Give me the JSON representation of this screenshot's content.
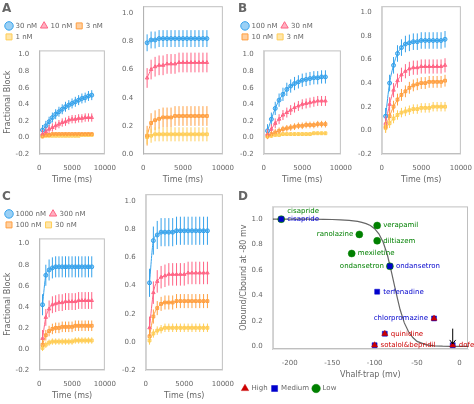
{
  "chart_data": [
    {
      "type": "line",
      "title": "A",
      "xlabel": "Time (ms)",
      "ylabel": "Fractional Block",
      "x": [
        500,
        1000,
        1500,
        2000,
        2500,
        3000,
        3500,
        4000,
        4500,
        5000,
        5500,
        6000,
        6500,
        7000,
        7500,
        8000
      ],
      "series": [
        {
          "name": "30 nM",
          "marker": "circle",
          "error": 0.06,
          "values": [
            0.09,
            0.14,
            0.19,
            0.24,
            0.28,
            0.31,
            0.34,
            0.37,
            0.39,
            0.41,
            0.43,
            0.45,
            0.47,
            0.48,
            0.5,
            0.51
          ]
        },
        {
          "name": "10 nM",
          "marker": "triangle",
          "error": 0.05,
          "values": [
            0.04,
            0.07,
            0.1,
            0.12,
            0.14,
            0.16,
            0.18,
            0.19,
            0.21,
            0.22,
            0.22,
            0.23,
            0.23,
            0.24,
            0.24,
            0.24
          ]
        },
        {
          "name": "3 nM",
          "marker": "square",
          "error": 0.02,
          "values": [
            0.02,
            0.03,
            0.03,
            0.04,
            0.04,
            0.04,
            0.04,
            0.04,
            0.04,
            0.04,
            0.04,
            0.04,
            0.04,
            0.04,
            0.04,
            0.04
          ]
        },
        {
          "name": "1 nM",
          "marker": "square",
          "error": 0.01,
          "values": [
            0.01,
            0.02,
            0.02,
            0.02,
            0.02,
            0.02,
            0.02,
            0.02,
            0.02,
            0.02,
            0.02,
            0.02,
            0.03,
            0.03,
            0.03,
            0.03
          ]
        }
      ],
      "xlim": [
        0,
        10000
      ],
      "xticks": [
        0,
        5000,
        10000
      ],
      "ylim": [
        -0.2,
        1.05
      ],
      "yticks": [
        -0.2,
        {
          "value": 0,
          "label": "0.0"
        },
        0.2,
        0.4,
        0.6,
        0.8,
        {
          "value": 1,
          "label": "1.0"
        }
      ],
      "grid": false,
      "legend": "upper left"
    },
    {
      "type": "line",
      "xlabel": "Time (ms)",
      "x": [
        500,
        1000,
        1500,
        2000,
        2500,
        3000,
        3500,
        4000,
        4500,
        5000,
        5500,
        6000,
        6500,
        7000,
        7500,
        8000
      ],
      "series": [
        {
          "marker": "circle",
          "error": 0.06,
          "values": [
            0.79,
            0.81,
            0.81,
            0.82,
            0.82,
            0.82,
            0.82,
            0.82,
            0.82,
            0.82,
            0.82,
            0.82,
            0.82,
            0.82,
            0.82,
            0.82
          ]
        },
        {
          "marker": "triangle",
          "error": 0.07,
          "values": [
            0.54,
            0.6,
            0.62,
            0.63,
            0.63,
            0.64,
            0.64,
            0.64,
            0.65,
            0.65,
            0.65,
            0.65,
            0.65,
            0.65,
            0.65,
            0.65
          ]
        },
        {
          "marker": "square",
          "error": 0.07,
          "values": [
            0.13,
            0.22,
            0.24,
            0.25,
            0.26,
            0.26,
            0.26,
            0.27,
            0.27,
            0.27,
            0.27,
            0.27,
            0.27,
            0.27,
            0.27,
            0.27
          ]
        },
        {
          "marker": "square",
          "error": 0.05,
          "values": [
            0.12,
            0.13,
            0.14,
            0.14,
            0.14,
            0.14,
            0.14,
            0.14,
            0.14,
            0.14,
            0.14,
            0.14,
            0.14,
            0.14,
            0.14,
            0.14
          ]
        }
      ],
      "xlim": [
        0,
        10000
      ],
      "xticks": [
        0,
        5000,
        10000
      ],
      "ylim": [
        0,
        1.05
      ],
      "yticks": [
        {
          "value": 0,
          "label": "0.0"
        },
        0.2,
        0.4,
        0.6,
        0.8,
        {
          "value": 1,
          "label": "1.0"
        }
      ],
      "grid": false
    },
    {
      "type": "line",
      "title": "B",
      "xlabel": "Time (ms)",
      "x": [
        500,
        1000,
        1500,
        2000,
        2500,
        3000,
        3500,
        4000,
        4500,
        5000,
        5500,
        6000,
        6500,
        7000,
        7500,
        8000
      ],
      "series": [
        {
          "name": "100 nM",
          "marker": "circle",
          "error": 0.08,
          "values": [
            0.08,
            0.22,
            0.35,
            0.45,
            0.52,
            0.58,
            0.62,
            0.65,
            0.67,
            0.69,
            0.7,
            0.71,
            0.72,
            0.72,
            0.73,
            0.73
          ]
        },
        {
          "name": "30 nM",
          "marker": "triangle",
          "error": 0.06,
          "values": [
            0.04,
            0.1,
            0.17,
            0.22,
            0.27,
            0.3,
            0.33,
            0.36,
            0.38,
            0.4,
            0.41,
            0.42,
            0.43,
            0.44,
            0.44,
            0.44
          ]
        },
        {
          "name": "10 nM",
          "marker": "square",
          "error": 0.04,
          "values": [
            0.02,
            0.04,
            0.06,
            0.08,
            0.1,
            0.11,
            0.12,
            0.13,
            0.14,
            0.14,
            0.15,
            0.15,
            0.15,
            0.16,
            0.16,
            0.16
          ]
        },
        {
          "name": "3 nM",
          "marker": "square",
          "error": 0.02,
          "values": [
            0.01,
            0.02,
            0.03,
            0.03,
            0.04,
            0.04,
            0.04,
            0.04,
            0.04,
            0.04,
            0.04,
            0.04,
            0.05,
            0.05,
            0.05,
            0.05
          ]
        }
      ],
      "xlim": [
        0,
        10000
      ],
      "xticks": [
        0,
        5000,
        10000
      ],
      "ylim": [
        -0.2,
        1.05
      ],
      "yticks": [
        -0.2,
        {
          "value": 0,
          "label": "0.0"
        },
        0.2,
        0.4,
        0.6,
        0.8,
        {
          "value": 1,
          "label": "1.0"
        }
      ],
      "grid": false,
      "legend": "upper left"
    },
    {
      "type": "line",
      "xlabel": "Time (ms)",
      "x": [
        500,
        1000,
        1500,
        2000,
        2500,
        3000,
        3500,
        4000,
        4500,
        5000,
        5500,
        6000,
        6500,
        7000,
        7500,
        8000
      ],
      "series": [
        {
          "marker": "circle",
          "error": 0.07,
          "values": [
            0.12,
            0.4,
            0.55,
            0.65,
            0.7,
            0.73,
            0.74,
            0.75,
            0.75,
            0.76,
            0.76,
            0.76,
            0.76,
            0.76,
            0.76,
            0.77
          ]
        },
        {
          "marker": "triangle",
          "error": 0.06,
          "values": [
            0.06,
            0.22,
            0.34,
            0.42,
            0.47,
            0.5,
            0.52,
            0.53,
            0.53,
            0.54,
            0.54,
            0.54,
            0.54,
            0.54,
            0.54,
            0.55
          ]
        },
        {
          "marker": "square",
          "error": 0.05,
          "values": [
            0.03,
            0.12,
            0.2,
            0.26,
            0.3,
            0.33,
            0.36,
            0.38,
            0.39,
            0.4,
            0.4,
            0.41,
            0.41,
            0.41,
            0.41,
            0.42
          ]
        },
        {
          "marker": "square",
          "error": 0.04,
          "values": [
            0.02,
            0.06,
            0.1,
            0.13,
            0.15,
            0.16,
            0.17,
            0.18,
            0.18,
            0.19,
            0.19,
            0.19,
            0.2,
            0.2,
            0.2,
            0.2
          ]
        }
      ],
      "xlim": [
        0,
        10000
      ],
      "xticks": [
        0,
        5000,
        10000
      ],
      "ylim": [
        -0.2,
        1.05
      ],
      "yticks": [
        -0.2,
        {
          "value": 0,
          "label": "0.0"
        },
        0.2,
        0.4,
        0.6,
        0.8,
        {
          "value": 1,
          "label": "1.0"
        }
      ],
      "grid": false
    },
    {
      "type": "line",
      "title": "C",
      "xlabel": "Time (ms)",
      "ylabel": "Fractional Block",
      "x": [
        500,
        1000,
        1500,
        2000,
        2500,
        3000,
        3500,
        4000,
        4500,
        5000,
        5500,
        6000,
        6500,
        7000,
        7500,
        8000
      ],
      "series": [
        {
          "name": "1000 nM",
          "marker": "circle",
          "error": 0.1,
          "values": [
            0.42,
            0.7,
            0.75,
            0.77,
            0.78,
            0.78,
            0.78,
            0.78,
            0.78,
            0.78,
            0.78,
            0.78,
            0.78,
            0.78,
            0.78,
            0.78
          ]
        },
        {
          "name": "300 nM",
          "marker": "triangle",
          "error": 0.08,
          "values": [
            0.1,
            0.3,
            0.38,
            0.42,
            0.43,
            0.44,
            0.44,
            0.45,
            0.45,
            0.45,
            0.45,
            0.46,
            0.46,
            0.46,
            0.46,
            0.46
          ]
        },
        {
          "name": "100 nM",
          "marker": "square",
          "error": 0.05,
          "values": [
            0.04,
            0.13,
            0.17,
            0.19,
            0.2,
            0.2,
            0.21,
            0.21,
            0.21,
            0.21,
            0.22,
            0.22,
            0.22,
            0.22,
            0.22,
            0.22
          ]
        },
        {
          "name": "30 nM",
          "marker": "square",
          "error": 0.03,
          "values": [
            0.01,
            0.04,
            0.06,
            0.07,
            0.07,
            0.07,
            0.07,
            0.07,
            0.07,
            0.07,
            0.08,
            0.08,
            0.08,
            0.08,
            0.08,
            0.08
          ]
        }
      ],
      "xlim": [
        0,
        10000
      ],
      "xticks": [
        0,
        5000,
        10000
      ],
      "ylim": [
        -0.2,
        1.05
      ],
      "yticks": [
        -0.2,
        {
          "value": 0,
          "label": "0.0"
        },
        0.2,
        0.4,
        0.6,
        0.8,
        {
          "value": 1,
          "label": "1.0"
        }
      ],
      "grid": false,
      "legend": "upper left"
    },
    {
      "type": "line",
      "xlabel": "Time (ms)",
      "x": [
        500,
        1000,
        1500,
        2000,
        2500,
        3000,
        3500,
        4000,
        4500,
        5000,
        5500,
        6000,
        6500,
        7000,
        7500,
        8000
      ],
      "series": [
        {
          "marker": "circle",
          "error": 0.1,
          "values": [
            0.42,
            0.72,
            0.76,
            0.78,
            0.78,
            0.78,
            0.78,
            0.79,
            0.79,
            0.79,
            0.79,
            0.79,
            0.79,
            0.79,
            0.79,
            0.79
          ]
        },
        {
          "marker": "triangle",
          "error": 0.08,
          "values": [
            0.1,
            0.35,
            0.43,
            0.46,
            0.47,
            0.48,
            0.48,
            0.48,
            0.48,
            0.48,
            0.49,
            0.49,
            0.49,
            0.49,
            0.49,
            0.49
          ]
        },
        {
          "marker": "square",
          "error": 0.05,
          "values": [
            0.04,
            0.18,
            0.24,
            0.27,
            0.28,
            0.28,
            0.28,
            0.29,
            0.29,
            0.29,
            0.29,
            0.29,
            0.29,
            0.29,
            0.29,
            0.29
          ]
        },
        {
          "marker": "square",
          "error": 0.03,
          "values": [
            0.01,
            0.06,
            0.08,
            0.09,
            0.1,
            0.1,
            0.1,
            0.1,
            0.1,
            0.1,
            0.1,
            0.1,
            0.1,
            0.1,
            0.1,
            0.1
          ]
        }
      ],
      "xlim": [
        0,
        10000
      ],
      "xticks": [
        0,
        5000,
        10000
      ],
      "ylim": [
        -0.2,
        1.05
      ],
      "yticks": [
        -0.2,
        {
          "value": 0,
          "label": "0.0"
        },
        0.2,
        0.4,
        0.6,
        0.8,
        {
          "value": 1,
          "label": "1.0"
        }
      ],
      "grid": false
    },
    {
      "type": "scatter",
      "title": "D",
      "xlabel": "Vhalf-trap (mv)",
      "ylabel": "Obound/Cbound at -80 mv",
      "series": [
        {
          "name": "High",
          "color": "#CC0000",
          "marker": "triangle",
          "x": [
            -88,
            -100,
            -8,
            -30
          ],
          "values": [
            0.1,
            0.01,
            0.01,
            0.22
          ],
          "point_labels": [
            "quinidine",
            "sotalol&bepridil",
            "dofetilide",
            null
          ]
        },
        {
          "name": "Medium",
          "color": "#0000CC",
          "marker": "square",
          "x": [
            -210,
            -82,
            -97,
            -30,
            -88,
            -100,
            -8
          ],
          "values": [
            1.0,
            0.63,
            0.43,
            0.22,
            0.1,
            0.01,
            0.01
          ],
          "point_labels": [
            "cisapride",
            "ondansetron",
            "terfenadine",
            "chlorpromazine",
            null,
            null,
            null
          ]
        },
        {
          "name": "Low",
          "color": "#008000",
          "marker": "circle",
          "x": [
            -210,
            -118,
            -97,
            -97,
            -127,
            -82
          ],
          "values": [
            1.0,
            0.88,
            0.95,
            0.83,
            0.73,
            0.63
          ],
          "point_labels": [
            "cisapride",
            "ranolazine",
            "verapamil",
            "diltiazem",
            "mexiletine",
            "ondansetron"
          ]
        },
        {
          "type": "line",
          "color": "#666666",
          "x": [
            -220,
            -215,
            -210,
            -200,
            -190,
            -180,
            -170,
            -160,
            -150,
            -140,
            -130,
            -120,
            -115,
            -110,
            -105,
            -100,
            -95,
            -90,
            -85,
            -80,
            -75,
            -70,
            -65,
            -60,
            -55,
            -50,
            -40,
            -30,
            -20,
            -10,
            0,
            10
          ],
          "values": [
            1.0,
            1.0,
            1.0,
            1.0,
            1.0,
            1.0,
            0.999,
            0.998,
            0.997,
            0.994,
            0.99,
            0.982,
            0.975,
            0.965,
            0.95,
            0.925,
            0.885,
            0.82,
            0.72,
            0.58,
            0.43,
            0.29,
            0.185,
            0.115,
            0.07,
            0.04,
            0.015,
            0.005,
            0.002,
            0.001,
            0.0,
            0.0
          ]
        }
      ],
      "arrows": [
        {
          "x": -8,
          "y_start": 0.14,
          "y_end": 0.02
        }
      ],
      "xlim": [
        -220,
        10
      ],
      "xticks": [
        -200,
        -150,
        -100,
        -50,
        0
      ],
      "ylim": [
        -0.02,
        1.1
      ],
      "yticks": [
        {
          "value": 0,
          "label": "0.0"
        },
        0.2,
        0.4,
        0.6,
        0.8,
        {
          "value": 1,
          "label": "1.0"
        }
      ],
      "grid": false,
      "legend": "lower left"
    }
  ]
}
